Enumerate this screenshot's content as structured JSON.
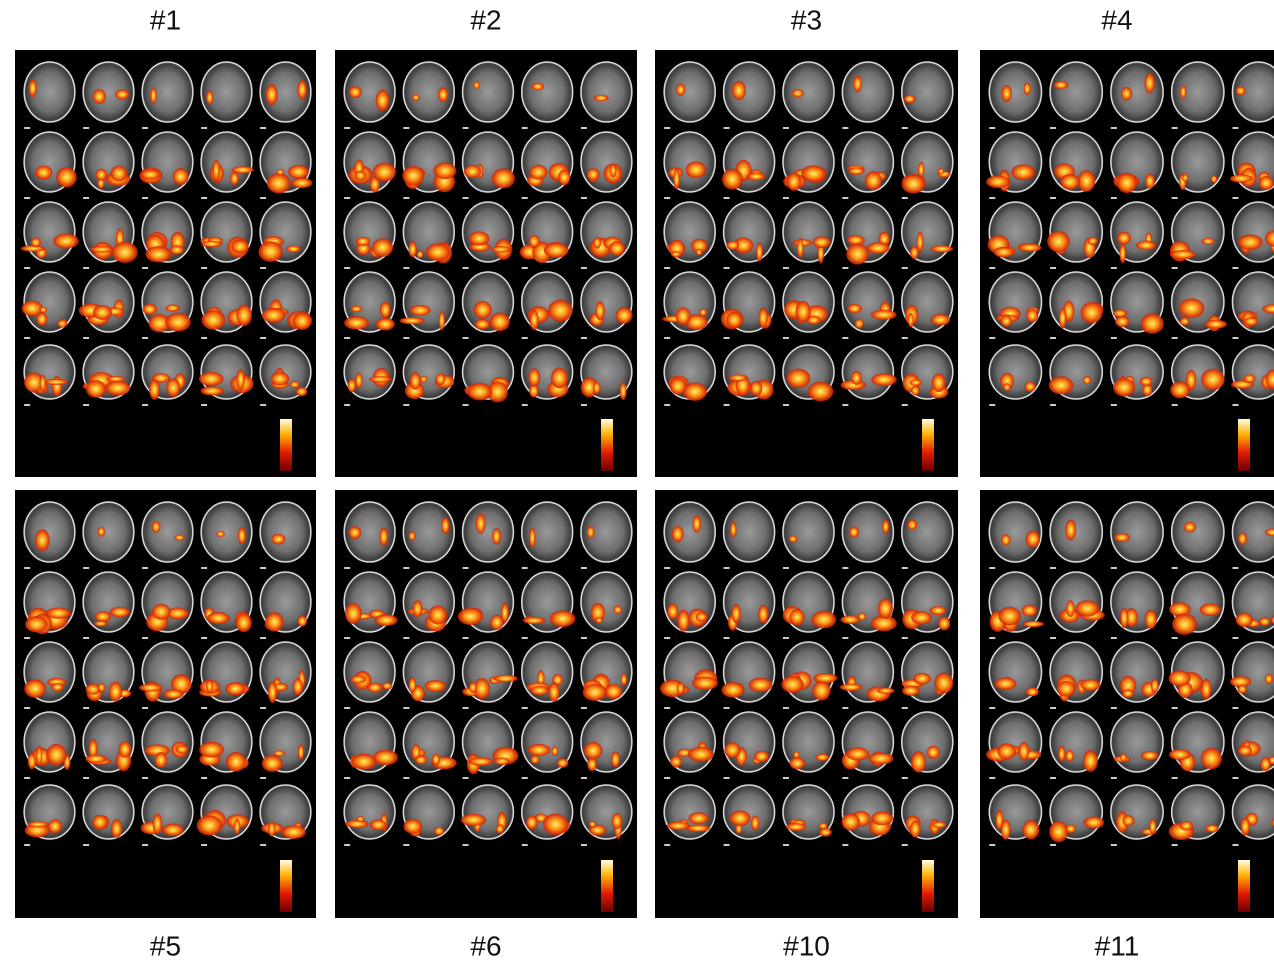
{
  "panels": [
    {
      "label": "#1"
    },
    {
      "label": "#2"
    },
    {
      "label": "#3"
    },
    {
      "label": "#4"
    },
    {
      "label": "#5"
    },
    {
      "label": "#6"
    },
    {
      "label": "#10"
    },
    {
      "label": "#11"
    }
  ]
}
